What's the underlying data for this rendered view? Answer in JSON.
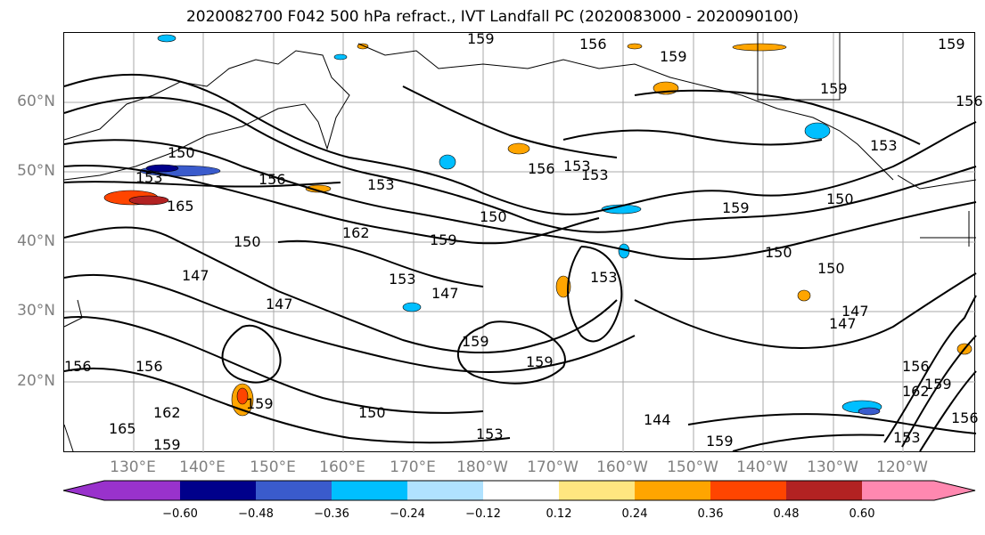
{
  "title": "2020082700 F042 500 hPa refract., IVT Landfall PC (2020083000 - 2020090100)",
  "lat_labels": [
    "60°N",
    "50°N",
    "40°N",
    "30°N",
    "20°N"
  ],
  "lon_labels": [
    "130°E",
    "140°E",
    "150°E",
    "160°E",
    "170°E",
    "180°W",
    "170°W",
    "160°W",
    "150°W",
    "140°W",
    "130°W",
    "120°W"
  ],
  "contour_labels": [
    "159",
    "156",
    "159",
    "159",
    "156",
    "150",
    "153",
    "156",
    "153",
    "156",
    "159",
    "153",
    "150",
    "150",
    "159",
    "162",
    "153",
    "147",
    "147",
    "159",
    "147",
    "150",
    "156",
    "159",
    "165",
    "162",
    "159",
    "150",
    "153",
    "144",
    "153",
    "150",
    "147",
    "150",
    "147",
    "153",
    "159",
    "156",
    "162",
    "153",
    "156",
    "165",
    "156",
    "159",
    "159",
    "159",
    "153"
  ],
  "colorbar": {
    "tick_labels": [
      "−0.60",
      "−0.48",
      "−0.36",
      "−0.24",
      "−0.12",
      "0.12",
      "0.24",
      "0.36",
      "0.48",
      "0.60"
    ],
    "colors": [
      "#9932cc",
      "#00008b",
      "#3a5bcc",
      "#00bfff",
      "#b0e2ff",
      "#ffffff",
      "#ffe680",
      "#ffa500",
      "#ff4500",
      "#b22222",
      "#ff88b0"
    ]
  },
  "chart_data": {
    "type": "contour-map",
    "projection": "lat-lon",
    "lon_range_deg_east": [
      122,
      246
    ],
    "lat_range_deg": [
      10,
      70
    ],
    "contour_field": "500 hPa refractivity",
    "contour_levels": [
      144,
      147,
      150,
      153,
      156,
      159,
      162,
      165
    ],
    "shaded_field": "IVT Landfall PC",
    "shading_bounds": [
      -0.6,
      -0.48,
      -0.36,
      -0.24,
      -0.12,
      0.12,
      0.24,
      0.36,
      0.48,
      0.6
    ]
  }
}
